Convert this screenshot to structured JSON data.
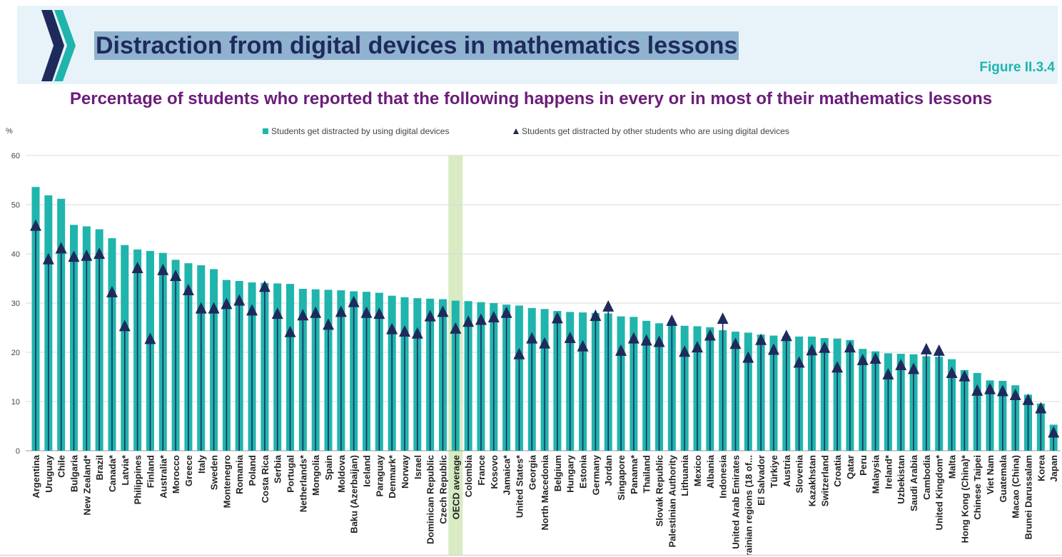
{
  "header": {
    "title": "Distraction from digital devices in mathematics lessons",
    "figure_ref": "Figure II.3.4",
    "logo_icon": "oecd-chevron-logo-icon"
  },
  "colors": {
    "bar": "#1fb5ad",
    "marker": "#1f2a5c",
    "highlight": "#d8ebc3",
    "title": "#6b1d7a"
  },
  "chart_data": {
    "type": "bar",
    "title": "Percentage of students who reported that the following happens in every or in most of their mathematics lessons",
    "ylabel": "%",
    "ylim": [
      0,
      60
    ],
    "yticks": [
      0,
      10,
      20,
      30,
      40,
      50,
      60
    ],
    "grid": true,
    "legend_position": "top-center",
    "highlight_category": "OECD average",
    "categories": [
      "Argentina",
      "Uruguay",
      "Chile",
      "Bulgaria",
      "New Zealand*",
      "Brazil",
      "Canada*",
      "Latvia*",
      "Philippines",
      "Finland",
      "Australia*",
      "Morocco",
      "Greece",
      "Italy",
      "Sweden",
      "Montenegro",
      "Romania",
      "Poland",
      "Costa Rica",
      "Serbia",
      "Portugal",
      "Netherlands*",
      "Mongolia",
      "Spain",
      "Moldova",
      "Baku (Azerbaijan)",
      "Iceland",
      "Paraguay",
      "Denmark*",
      "Norway",
      "Israel",
      "Dominican Republic",
      "Czech Republic",
      "OECD average",
      "Colombia",
      "France",
      "Kosovo",
      "Jamaica*",
      "United States*",
      "Georgia",
      "North Macedonia",
      "Belgium",
      "Hungary",
      "Estonia",
      "Germany",
      "Jordan",
      "Singapore",
      "Panama*",
      "Thailand",
      "Slovak Republic",
      "Palestinian Authority",
      "Lithuania",
      "Mexico",
      "Albania",
      "Indonesia",
      "United Arab Emirates",
      "Ukrainian regions (18 of...",
      "El Salvador",
      "Türkiye",
      "Austria",
      "Slovenia",
      "Kazakhstan",
      "Switzerland",
      "Croatia",
      "Qatar",
      "Peru",
      "Malaysia",
      "Ireland*",
      "Uzbekistan",
      "Saudi Arabia",
      "Cambodia",
      "United Kingdom*",
      "Malta",
      "Hong Kong (China)*",
      "Chinese Taipei",
      "Viet Nam",
      "Guatemala",
      "Macao (China)",
      "Brunei Darussalam",
      "Korea",
      "Japan"
    ],
    "series": [
      {
        "name": "Students get distracted by using digital devices",
        "kind": "bar",
        "values": [
          53.6,
          51.9,
          51.2,
          45.9,
          45.6,
          45.0,
          43.2,
          41.8,
          40.9,
          40.6,
          40.2,
          38.8,
          38.1,
          37.7,
          36.9,
          34.7,
          34.5,
          34.2,
          34.1,
          34.0,
          33.9,
          32.9,
          32.8,
          32.7,
          32.6,
          32.4,
          32.3,
          32.1,
          31.5,
          31.2,
          31.0,
          30.9,
          30.8,
          30.5,
          30.4,
          30.2,
          30.0,
          29.7,
          29.5,
          29.0,
          28.8,
          28.4,
          28.2,
          28.1,
          28.0,
          27.9,
          27.3,
          27.2,
          26.4,
          25.9,
          25.7,
          25.4,
          25.3,
          25.1,
          24.5,
          24.2,
          24.0,
          23.6,
          23.4,
          23.3,
          23.2,
          23.2,
          22.9,
          22.8,
          22.5,
          20.7,
          20.2,
          19.8,
          19.7,
          19.6,
          19.2,
          19.1,
          18.6,
          16.4,
          15.8,
          14.3,
          14.2,
          13.3,
          11.4,
          9.6,
          5.3
        ]
      },
      {
        "name": "Students get distracted by other students who are using digital devices",
        "kind": "marker",
        "values": [
          45.7,
          38.9,
          41.1,
          39.4,
          39.6,
          40.0,
          32.2,
          25.3,
          37.1,
          22.7,
          36.7,
          35.5,
          32.6,
          28.9,
          28.9,
          29.8,
          30.5,
          28.5,
          33.3,
          27.8,
          24.1,
          27.5,
          28.0,
          25.6,
          28.2,
          30.2,
          28.0,
          27.8,
          24.7,
          24.2,
          23.8,
          27.3,
          28.2,
          24.8,
          26.2,
          26.6,
          27.1,
          28.0,
          19.6,
          22.8,
          21.8,
          26.9,
          22.9,
          21.2,
          27.4,
          29.3,
          20.3,
          22.8,
          22.4,
          22.1,
          26.4,
          20.1,
          21.0,
          23.4,
          26.8,
          21.7,
          18.9,
          22.5,
          20.5,
          23.3,
          17.9,
          20.4,
          20.9,
          16.9,
          21.0,
          18.4,
          18.7,
          15.5,
          17.4,
          16.6,
          20.6,
          20.3,
          15.8,
          15.1,
          12.2,
          12.5,
          12.1,
          11.3,
          10.3,
          8.6,
          3.7
        ]
      }
    ]
  }
}
